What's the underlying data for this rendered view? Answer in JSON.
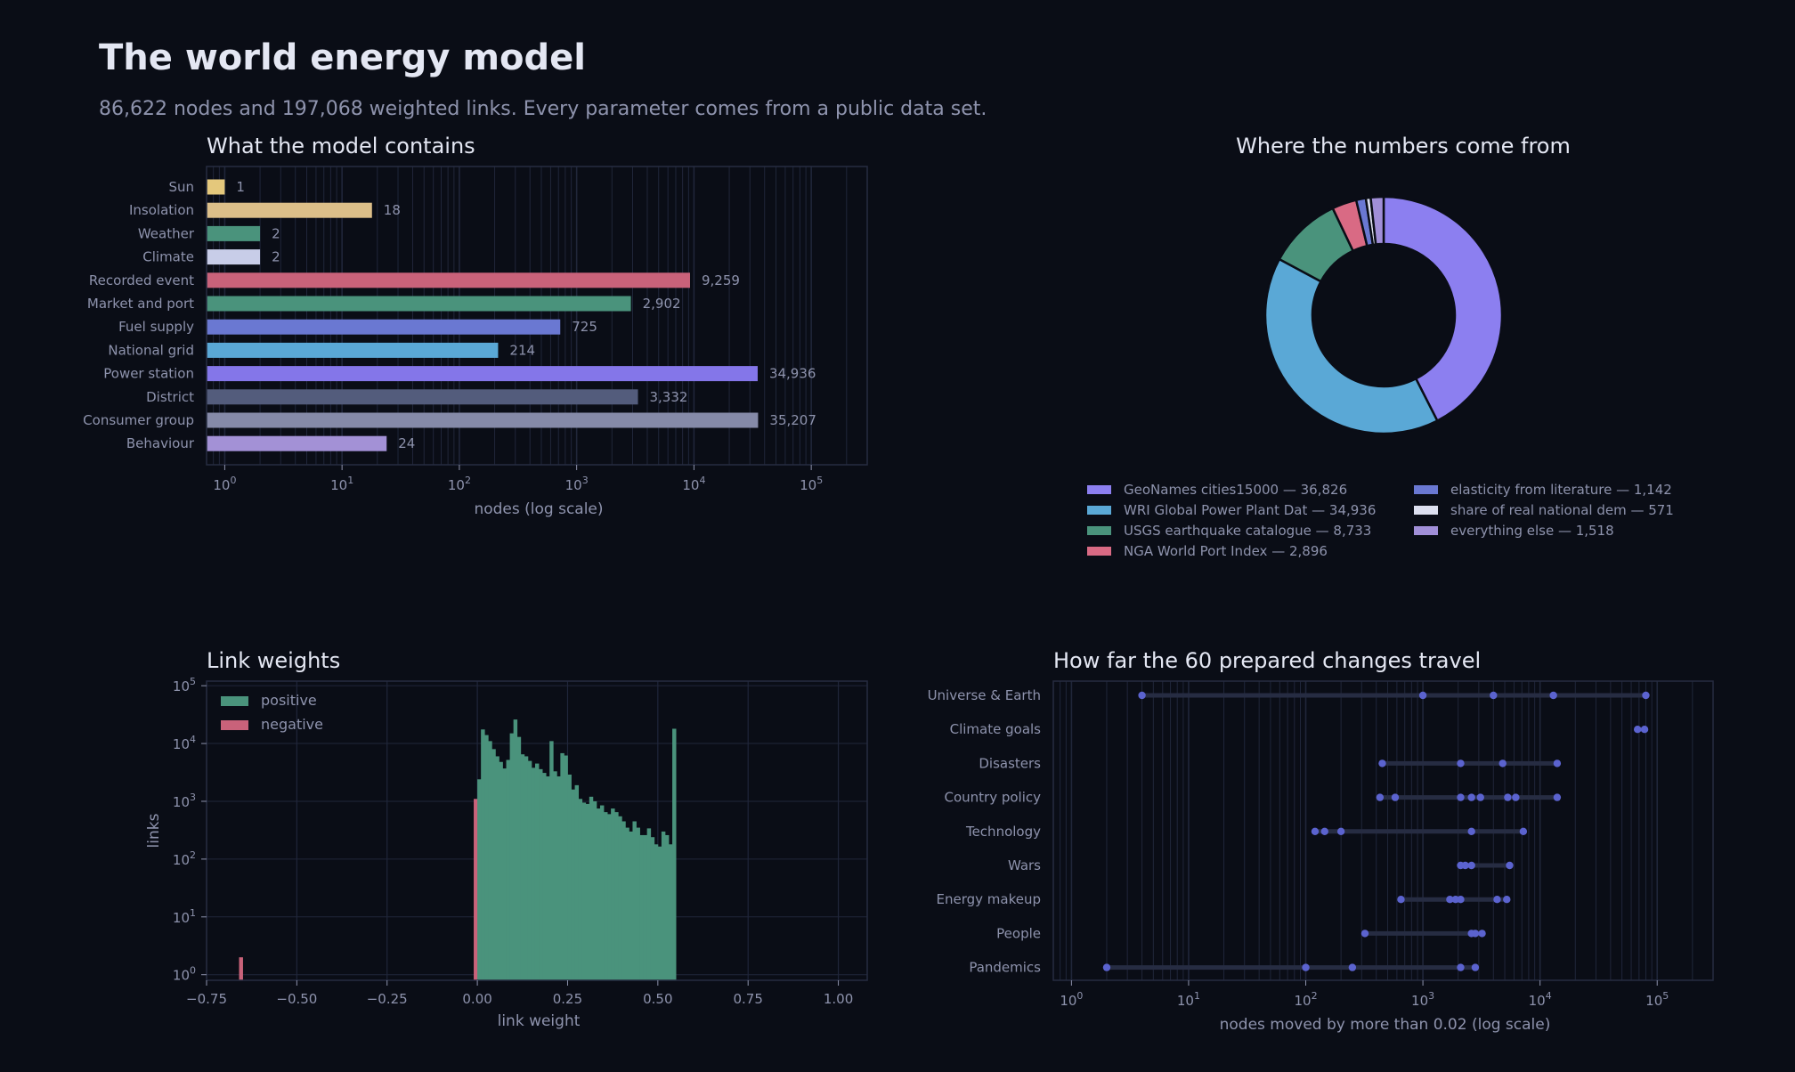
{
  "page": {
    "title": "The world energy model",
    "subtitle": "86,622 nodes and 197,068 weighted links. Every parameter comes from a public data set."
  },
  "colors": {
    "background": "#0a0d16",
    "panel_border": "#262c40",
    "grid": "#20263a",
    "text": "#e4e7f3",
    "muted_text": "#8e93ad",
    "positive": "#4a937c",
    "negative": "#c9627a",
    "dot": "#5b63cf",
    "range_bar": "#262c42"
  },
  "chart_data": [
    {
      "id": "contents",
      "type": "bar",
      "orientation": "horizontal",
      "title": "What the model contains",
      "xlabel": "nodes (log scale)",
      "ylabel": "",
      "xscale": "log",
      "xlim": [
        0.7,
        300000
      ],
      "xticks": [
        {
          "base": "10",
          "exp": "0"
        },
        {
          "base": "10",
          "exp": "1"
        },
        {
          "base": "10",
          "exp": "2"
        },
        {
          "base": "10",
          "exp": "3"
        },
        {
          "base": "10",
          "exp": "4"
        },
        {
          "base": "10",
          "exp": "5"
        }
      ],
      "grid": true,
      "categories": [
        "Sun",
        "Insolation",
        "Weather",
        "Climate",
        "Recorded event",
        "Market and port",
        "Fuel supply",
        "National grid",
        "Power station",
        "District",
        "Consumer group",
        "Behaviour"
      ],
      "values": [
        1,
        18,
        2,
        2,
        9259,
        2902,
        725,
        214,
        34936,
        3332,
        35207,
        24
      ],
      "value_labels": [
        "1",
        "18",
        "2",
        "2",
        "9,259",
        "2,902",
        "725",
        "214",
        "34,936",
        "3,332",
        "35,207",
        "24"
      ],
      "colors": [
        "#e4c87c",
        "#dcbf89",
        "#4a937c",
        "#c8cde8",
        "#c9627a",
        "#4a937c",
        "#6a78d2",
        "#5aa8d6",
        "#8476e9",
        "#535c7c",
        "#858aa8",
        "#a391d6"
      ]
    },
    {
      "id": "sources",
      "type": "pie",
      "donut": true,
      "title": "Where the numbers come from",
      "legend_position": "bottom",
      "slices": [
        {
          "label": "GeoNames cities15000 — 36,826",
          "value": 36826,
          "color": "#8c7ff0"
        },
        {
          "label": "WRI Global Power Plant Dat — 34,936",
          "value": 34936,
          "color": "#5aa8d6"
        },
        {
          "label": "USGS earthquake catalogue — 8,733",
          "value": 8733,
          "color": "#4a937c"
        },
        {
          "label": "NGA World Port Index — 2,896",
          "value": 2896,
          "color": "#d96a84"
        },
        {
          "label": "elasticity from literature — 1,142",
          "value": 1142,
          "color": "#6a78d2"
        },
        {
          "label": "share of real national dem — 571",
          "value": 571,
          "color": "#dde0f0"
        },
        {
          "label": "everything else — 1,518",
          "value": 1518,
          "color": "#a18fd8"
        }
      ]
    },
    {
      "id": "weights",
      "type": "bar",
      "subtype": "histogram",
      "title": "Link weights",
      "xlabel": "link weight",
      "ylabel": "links",
      "yscale": "log",
      "xlim": [
        -0.75,
        1.08
      ],
      "ylim": [
        0.8,
        120000
      ],
      "xticks": [
        "−0.75",
        "−0.50",
        "−0.25",
        "0.00",
        "0.25",
        "0.50",
        "0.75",
        "1.00"
      ],
      "yticks": [
        {
          "base": "10",
          "exp": "0"
        },
        {
          "base": "10",
          "exp": "1"
        },
        {
          "base": "10",
          "exp": "2"
        },
        {
          "base": "10",
          "exp": "3"
        },
        {
          "base": "10",
          "exp": "4"
        },
        {
          "base": "10",
          "exp": "5"
        }
      ],
      "grid": true,
      "legend_position": "top-left",
      "bin_width": 0.01,
      "series": [
        {
          "name": "negative",
          "color": "#c9627a",
          "bins": [
            {
              "x": -0.66,
              "count": 2
            },
            {
              "x": -0.01,
              "count": 1100
            }
          ]
        },
        {
          "name": "positive",
          "color": "#4a937c",
          "counts_from_x": 0.0,
          "counts": [
            2400,
            17500,
            14000,
            11000,
            8000,
            6000,
            4800,
            3700,
            5200,
            15000,
            26000,
            13000,
            6500,
            6000,
            5000,
            3800,
            4500,
            3600,
            3100,
            2700,
            11000,
            3300,
            2700,
            6800,
            6200,
            2900,
            1600,
            1900,
            1100,
            950,
            900,
            1200,
            1000,
            750,
            850,
            650,
            600,
            750,
            650,
            550,
            450,
            350,
            300,
            450,
            350,
            260,
            260,
            340,
            240,
            180,
            165,
            300,
            260,
            180,
            18000
          ]
        }
      ]
    },
    {
      "id": "reach",
      "type": "scatter",
      "subtype": "range-dot",
      "title": "How far the 60 prepared changes travel",
      "xlabel": "nodes moved by more than 0.02 (log scale)",
      "ylabel": "",
      "xscale": "log",
      "xlim": [
        0.7,
        300000
      ],
      "xticks": [
        {
          "base": "10",
          "exp": "0"
        },
        {
          "base": "10",
          "exp": "1"
        },
        {
          "base": "10",
          "exp": "2"
        },
        {
          "base": "10",
          "exp": "3"
        },
        {
          "base": "10",
          "exp": "4"
        },
        {
          "base": "10",
          "exp": "5"
        }
      ],
      "grid": true,
      "rows": [
        {
          "label": "Universe & Earth",
          "values": [
            4,
            1000,
            4000,
            13000,
            80000
          ]
        },
        {
          "label": "Climate goals",
          "values": [
            68000,
            78000
          ]
        },
        {
          "label": "Disasters",
          "values": [
            450,
            2100,
            4800,
            14000
          ]
        },
        {
          "label": "Country policy",
          "values": [
            430,
            580,
            2100,
            2600,
            3100,
            5300,
            6200,
            14000
          ]
        },
        {
          "label": "Technology",
          "values": [
            120,
            145,
            200,
            2600,
            7200
          ]
        },
        {
          "label": "Wars",
          "values": [
            2100,
            2300,
            2600,
            5500
          ]
        },
        {
          "label": "Energy makeup",
          "values": [
            650,
            1700,
            1900,
            2100,
            4300,
            5200
          ]
        },
        {
          "label": "People",
          "values": [
            320,
            2600,
            2800,
            3200
          ]
        },
        {
          "label": "Pandemics",
          "values": [
            2,
            100,
            250,
            2100,
            2800
          ]
        }
      ]
    }
  ]
}
